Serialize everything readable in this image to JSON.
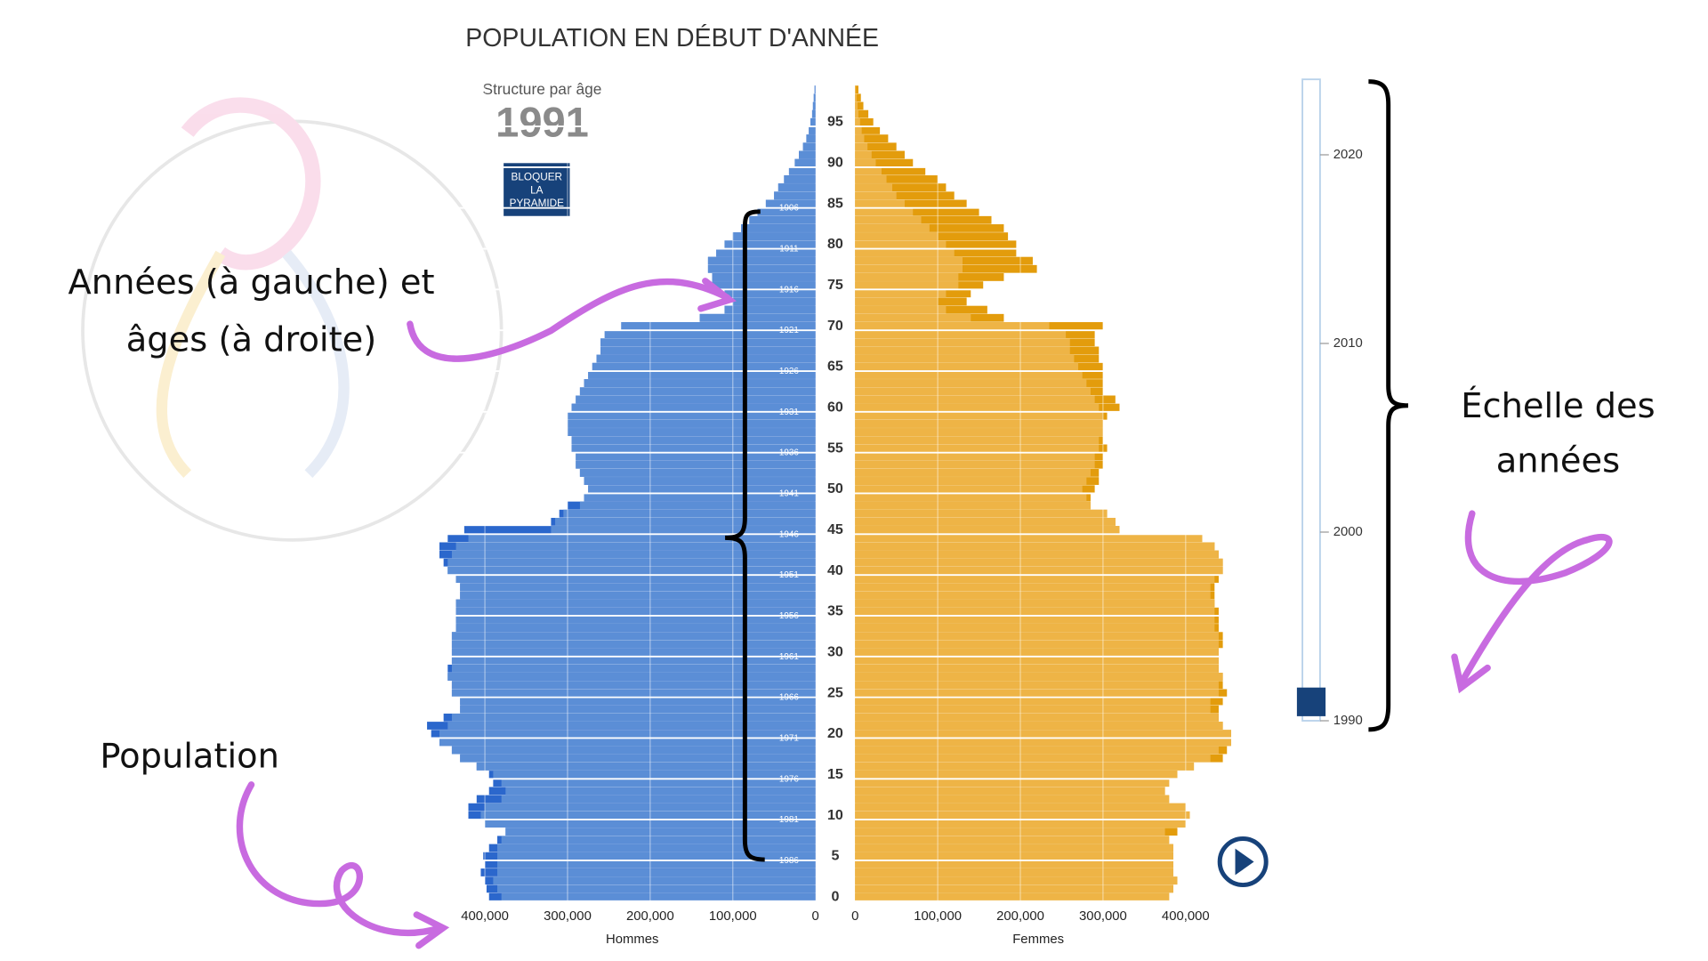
{
  "chart_data": {
    "type": "pyramid",
    "title": "POPULATION EN DÉBUT D'ANNÉE",
    "subtitle": "Structure par âge",
    "year": 1991,
    "button_label": [
      "BLOQUER",
      "LA",
      "PYRAMIDE"
    ],
    "ages_lim": [
      -0.5,
      99.5
    ],
    "age_ticks": [
      0,
      5,
      10,
      15,
      20,
      25,
      30,
      35,
      40,
      45,
      50,
      55,
      60,
      65,
      70,
      75,
      80,
      85,
      90,
      95
    ],
    "birth_years": [
      1906,
      1911,
      1916,
      1921,
      1926,
      1931,
      1936,
      1941,
      1946,
      1951,
      1956,
      1961,
      1966,
      1971,
      1976,
      1981,
      1986
    ],
    "xlim": [
      0,
      470000
    ],
    "xticks": [
      0,
      {
        "value": 100000,
        "label": "100,000"
      },
      {
        "value": 200000,
        "label": "200,000"
      },
      {
        "value": 300000,
        "label": "300,000"
      },
      {
        "value": 400000,
        "label": "400,000"
      }
    ],
    "series": [
      {
        "name": "Hommes",
        "color": "#5b8ed6",
        "excess_color": "#2b67cc",
        "values": [
          395000,
          398000,
          400000,
          405000,
          400000,
          402000,
          395000,
          385000,
          375000,
          400000,
          420000,
          420000,
          410000,
          395000,
          390000,
          395000,
          410000,
          430000,
          440000,
          455000,
          465000,
          470000,
          450000,
          430000,
          430000,
          440000,
          440000,
          445000,
          445000,
          440000,
          440000,
          440000,
          440000,
          435000,
          435000,
          435000,
          435000,
          430000,
          430000,
          435000,
          445000,
          450000,
          455000,
          455000,
          445000,
          425000,
          320000,
          310000,
          300000,
          280000,
          275000,
          280000,
          285000,
          290000,
          290000,
          295000,
          295000,
          300000,
          300000,
          300000,
          295000,
          290000,
          285000,
          280000,
          275000,
          270000,
          265000,
          260000,
          260000,
          255000,
          235000,
          140000,
          110000,
          100000,
          110000,
          125000,
          125000,
          130000,
          130000,
          120000,
          110000,
          100000,
          90000,
          80000,
          70000,
          60000,
          50000,
          45000,
          38000,
          32000,
          25000,
          20000,
          15000,
          11000,
          8000,
          6000,
          4000,
          3000,
          2000,
          1000
        ]
      },
      {
        "name": "Femmes",
        "color": "#eeb446",
        "excess_color": "#e39c0c",
        "values": [
          380000,
          385000,
          390000,
          385000,
          385000,
          385000,
          385000,
          380000,
          390000,
          400000,
          405000,
          400000,
          380000,
          375000,
          380000,
          390000,
          410000,
          445000,
          450000,
          455000,
          455000,
          445000,
          440000,
          440000,
          445000,
          450000,
          445000,
          445000,
          440000,
          440000,
          440000,
          445000,
          445000,
          440000,
          440000,
          440000,
          435000,
          435000,
          435000,
          440000,
          445000,
          445000,
          440000,
          435000,
          420000,
          320000,
          315000,
          305000,
          285000,
          285000,
          290000,
          295000,
          295000,
          300000,
          300000,
          305000,
          300000,
          300000,
          300000,
          305000,
          320000,
          315000,
          300000,
          300000,
          300000,
          300000,
          295000,
          295000,
          290000,
          290000,
          300000,
          180000,
          160000,
          135000,
          140000,
          155000,
          180000,
          220000,
          215000,
          195000,
          195000,
          185000,
          180000,
          165000,
          150000,
          135000,
          120000,
          110000,
          100000,
          85000,
          70000,
          60000,
          50000,
          40000,
          30000,
          22000,
          16000,
          10000,
          7000,
          4000
        ]
      }
    ],
    "slider": {
      "ylim": [
        1990,
        2024
      ],
      "yticks": [
        1990,
        2000,
        2010,
        2020
      ]
    },
    "annotations": {
      "ages": [
        "Années (à gauche) et",
        "âges (à droite)"
      ],
      "scale": [
        "Échelle des",
        "années"
      ],
      "population": "Population"
    }
  }
}
